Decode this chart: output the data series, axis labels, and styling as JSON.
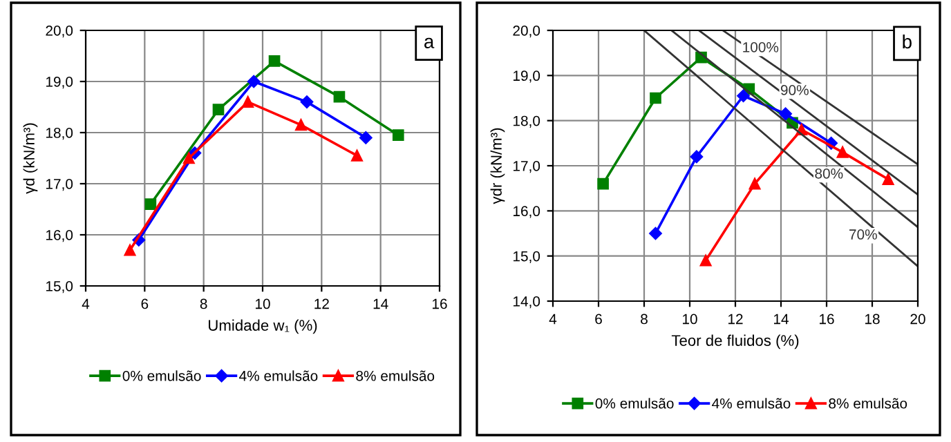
{
  "chart_data": [
    {
      "type": "line",
      "xlabel": "Umidade w₁ (%)",
      "ylabel": "γd (kN/m³)",
      "xlim": [
        4,
        16
      ],
      "xticks": [
        4,
        6,
        8,
        10,
        12,
        14,
        16
      ],
      "ylim": [
        15,
        20
      ],
      "yticks": [
        {
          "value": 15,
          "label": "15,0"
        },
        {
          "value": 16,
          "label": "16,0"
        },
        {
          "value": 17,
          "label": "17,0"
        },
        {
          "value": 18,
          "label": "18,0"
        },
        {
          "value": 19,
          "label": "19,0"
        },
        {
          "value": 20,
          "label": "20,0"
        }
      ],
      "grid": true,
      "legend": "bottom",
      "annotations": [
        "a"
      ],
      "series": [
        {
          "name": "0% emulsão",
          "color": "#008000",
          "marker": "square",
          "x": [
            6.2,
            8.5,
            10.4,
            12.6,
            14.6
          ],
          "values": [
            16.6,
            18.45,
            19.4,
            18.7,
            17.95
          ]
        },
        {
          "name": "4% emulsão",
          "color": "#0000ff",
          "marker": "diamond",
          "x": [
            5.8,
            7.7,
            9.7,
            11.5,
            13.5
          ],
          "values": [
            15.9,
            17.6,
            19.0,
            18.6,
            17.9
          ]
        },
        {
          "name": "8% emulsão",
          "color": "#ff0000",
          "marker": "triangle",
          "x": [
            5.5,
            7.5,
            9.5,
            11.3,
            13.2
          ],
          "values": [
            15.7,
            17.5,
            18.6,
            18.15,
            17.55
          ]
        }
      ]
    },
    {
      "type": "line",
      "xlabel": "Teor de fluidos (%)",
      "ylabel": "γdr (kN/m³)",
      "xlim": [
        4,
        20
      ],
      "xticks": [
        4,
        6,
        8,
        10,
        12,
        14,
        16,
        18,
        20
      ],
      "ylim": [
        14,
        20
      ],
      "yticks": [
        {
          "value": 14,
          "label": "14,0"
        },
        {
          "value": 15,
          "label": "15,0"
        },
        {
          "value": 16,
          "label": "16,0"
        },
        {
          "value": 17,
          "label": "17,0"
        },
        {
          "value": 18,
          "label": "18,0"
        },
        {
          "value": 19,
          "label": "19,0"
        },
        {
          "value": 20,
          "label": "20,0"
        }
      ],
      "grid": true,
      "legend": "bottom",
      "annotations": [
        "b",
        {
          "text": "100%",
          "x": 13.1,
          "y": 19.6
        },
        {
          "text": "90%",
          "x": 14.6,
          "y": 18.65
        },
        {
          "text": "80%",
          "x": 16.1,
          "y": 16.8
        },
        {
          "text": "70%",
          "x": 17.6,
          "y": 15.45
        }
      ],
      "series": [
        {
          "name": "0% emulsão",
          "color": "#008000",
          "marker": "square",
          "x": [
            6.2,
            8.5,
            10.5,
            12.6,
            14.5
          ],
          "values": [
            16.6,
            18.5,
            19.4,
            18.7,
            17.95
          ]
        },
        {
          "name": "4% emulsão",
          "color": "#0000ff",
          "marker": "diamond",
          "x": [
            8.5,
            10.3,
            12.35,
            14.2,
            16.2
          ],
          "values": [
            15.5,
            17.2,
            18.55,
            18.15,
            17.5
          ]
        },
        {
          "name": "8% emulsão",
          "color": "#ff0000",
          "marker": "triangle",
          "x": [
            10.7,
            12.85,
            14.9,
            16.7,
            18.7
          ],
          "values": [
            14.9,
            16.6,
            17.8,
            17.3,
            16.7
          ]
        },
        {
          "color": "#333333",
          "marker": "none",
          "x": [
            8.0,
            20
          ],
          "values": [
            20,
            14.77
          ]
        },
        {
          "color": "#333333",
          "marker": "none",
          "x": [
            9.2,
            20
          ],
          "values": [
            20,
            15.64
          ]
        },
        {
          "color": "#333333",
          "marker": "none",
          "x": [
            10.4,
            20
          ],
          "values": [
            20,
            16.36
          ]
        },
        {
          "color": "#333333",
          "marker": "none",
          "x": [
            11.45,
            20
          ],
          "values": [
            20,
            17.03
          ]
        }
      ]
    }
  ]
}
